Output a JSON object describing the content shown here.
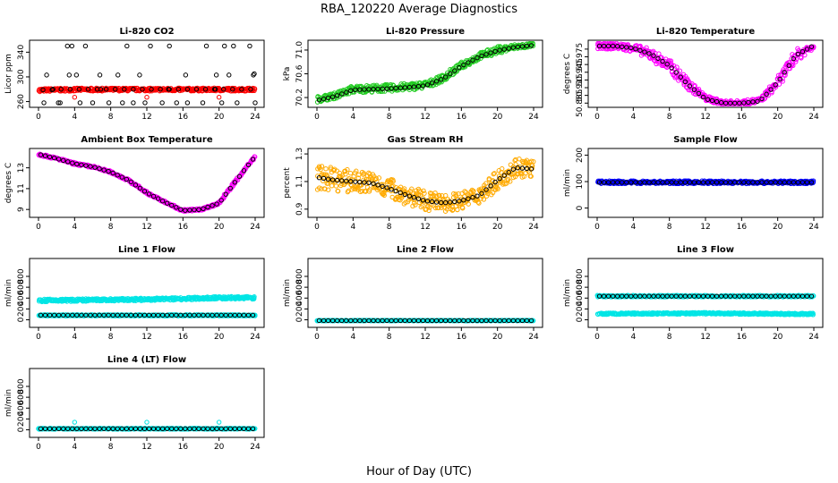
{
  "figure": {
    "title": "RBA_120220  Average Diagnostics",
    "xlabel": "Hour of Day (UTC)"
  },
  "chart_data": [
    {
      "id": "co2",
      "type": "scatter",
      "title": "Li-820 CO2",
      "ylabel": "Licor ppm",
      "xlim": [
        0,
        24
      ],
      "ylim": [
        255,
        355
      ],
      "xticks": [
        0,
        4,
        8,
        12,
        16,
        20,
        24
      ],
      "yticks": [
        260,
        300,
        340
      ],
      "ytick_labels": [
        "260",
        "300",
        "340"
      ],
      "series": [
        {
          "name": "band",
          "color": "#ff0000",
          "kind": "band",
          "x": [
            0,
            4,
            8,
            12,
            16,
            20,
            24
          ],
          "lo": [
            276,
            277,
            277,
            277,
            277,
            277,
            277
          ],
          "hi": [
            281,
            282,
            282,
            282,
            282,
            282,
            282
          ]
        },
        {
          "name": "mean",
          "color": "#000000",
          "kind": "points",
          "x": [
            0.5,
            1.5,
            2.5,
            3.5,
            4.5,
            5.5,
            6.5,
            7.5,
            8.5,
            9.5,
            10.5,
            11.5,
            12.5,
            13.5,
            14.5,
            15.5,
            16.5,
            17.5,
            18.5,
            19.5,
            20.5,
            21.5,
            22.5,
            23.5
          ],
          "y": [
            279,
            279,
            280,
            280,
            280,
            280,
            280,
            280,
            280,
            280,
            280,
            280,
            280,
            280,
            280,
            280,
            280,
            280,
            280,
            280,
            280,
            280,
            280,
            280
          ]
        },
        {
          "name": "outliers",
          "color": "#000000",
          "kind": "points",
          "x": [
            0.6,
            2.2,
            4.6,
            6.0,
            7.8,
            9.3,
            10.5,
            11.8,
            13.7,
            15.3,
            16.5,
            18.2,
            20.3,
            22.0,
            2.4,
            3.2,
            3.7,
            5.2,
            9.8,
            12.4,
            14.5,
            18.6,
            20.6,
            21.6,
            23.4,
            0.9,
            3.4,
            4.2,
            6.8,
            8.8,
            11.2,
            16.3,
            19.7,
            21.1,
            23.8,
            1.6,
            6.9,
            14.4,
            19.6,
            23.9,
            24.0
          ],
          "y": [
            258,
            258,
            258,
            258,
            258,
            258,
            258,
            258,
            258,
            258,
            258,
            258,
            258,
            258,
            258,
            350,
            350,
            350,
            350,
            350,
            350,
            350,
            350,
            350,
            350,
            303,
            303,
            303,
            303,
            303,
            303,
            303,
            303,
            303,
            303,
            280,
            280,
            280,
            280,
            305,
            258
          ]
        },
        {
          "name": "red",
          "color": "#ff0000",
          "kind": "points",
          "x": [
            4,
            12,
            20
          ],
          "y": [
            267,
            267,
            267
          ]
        }
      ]
    },
    {
      "id": "pressure",
      "type": "scatter",
      "title": "Li-820 Pressure",
      "ylabel": "kPa",
      "xlim": [
        0,
        24
      ],
      "ylim": [
        70.08,
        71.12
      ],
      "xticks": [
        0,
        4,
        8,
        12,
        16,
        20,
        24
      ],
      "yticks": [
        70.2,
        70.6,
        71.0
      ],
      "ytick_labels": [
        "70.2",
        "70.6",
        "71.0"
      ],
      "series": [
        {
          "name": "band",
          "color": "#22cc22",
          "kind": "band",
          "x": [
            0,
            2,
            4,
            6,
            8,
            10,
            12,
            14,
            16,
            18,
            20,
            22,
            24
          ],
          "lo": [
            70.12,
            70.18,
            70.28,
            70.29,
            70.3,
            70.32,
            70.35,
            70.47,
            70.68,
            70.84,
            70.94,
            71.01,
            71.05
          ],
          "hi": [
            70.22,
            70.28,
            70.4,
            70.41,
            70.42,
            70.44,
            70.47,
            70.59,
            70.8,
            70.96,
            71.06,
            71.1,
            71.12
          ]
        },
        {
          "name": "mean",
          "color": "#000000",
          "kind": "line",
          "x": [
            0,
            2,
            4,
            6,
            8,
            10,
            12,
            14,
            16,
            18,
            20,
            22,
            24
          ],
          "y": [
            70.15,
            70.22,
            70.33,
            70.34,
            70.35,
            70.37,
            70.4,
            70.52,
            70.73,
            70.89,
            70.99,
            71.05,
            71.08
          ]
        }
      ]
    },
    {
      "id": "licortemp",
      "type": "scatter",
      "title": "Li-820 Temperature",
      "ylabel": "degrees C",
      "xlim": [
        0,
        24
      ],
      "ylim": [
        50.882,
        51.002
      ],
      "xticks": [
        0,
        4,
        8,
        12,
        16,
        20,
        24
      ],
      "yticks": [
        50.885,
        50.9,
        50.915,
        50.93,
        50.945,
        50.96,
        50.975,
        50.99
      ],
      "ytick_labels": [
        "50.885",
        "",
        "50.915",
        "",
        "50.945",
        "",
        "50.975",
        ""
      ],
      "series": [
        {
          "name": "band",
          "color": "#ff00ff",
          "kind": "band",
          "x": [
            0,
            2,
            4,
            6,
            8,
            10,
            12,
            14,
            16,
            18,
            20,
            22,
            24
          ],
          "lo": [
            50.99,
            50.99,
            50.985,
            50.968,
            50.945,
            50.912,
            50.889,
            50.881,
            50.881,
            50.885,
            50.915,
            50.965,
            50.99
          ],
          "hi": [
            51.002,
            51.002,
            51.0,
            50.99,
            50.97,
            50.935,
            50.9,
            50.89,
            50.89,
            50.895,
            50.935,
            50.99,
            51.002
          ],
          "offsets": {
            "lo": -0.005,
            "hi": 0.004
          }
        },
        {
          "name": "mean",
          "color": "#000000",
          "kind": "line",
          "x": [
            0,
            2,
            4,
            6,
            8,
            10,
            12,
            14,
            16,
            18,
            20,
            22,
            24
          ],
          "y": [
            50.996,
            50.996,
            50.992,
            50.98,
            50.958,
            50.922,
            50.893,
            50.885,
            50.885,
            50.889,
            50.925,
            50.978,
            50.997
          ]
        }
      ]
    },
    {
      "id": "ambtemp",
      "type": "scatter",
      "title": "Ambient Box Temperature",
      "ylabel": "degrees C",
      "xlim": [
        0,
        24
      ],
      "ylim": [
        8.5,
        14.6
      ],
      "xticks": [
        0,
        4,
        8,
        12,
        16,
        20,
        24
      ],
      "yticks": [
        9,
        11,
        13
      ],
      "ytick_labels": [
        "9",
        "11",
        "13"
      ],
      "series": [
        {
          "name": "band",
          "color": "#ff00ff",
          "kind": "band",
          "x": [
            0,
            2,
            4,
            6,
            8,
            10,
            12,
            14,
            16,
            18,
            20,
            22,
            24
          ],
          "lo": [
            14.2,
            13.8,
            13.3,
            13.0,
            12.5,
            11.7,
            10.5,
            9.6,
            8.8,
            8.9,
            9.5,
            11.8,
            14.0
          ],
          "hi": [
            14.4,
            14.0,
            13.5,
            13.2,
            12.7,
            11.9,
            10.7,
            9.8,
            9.0,
            9.1,
            9.7,
            12.0,
            14.2
          ]
        },
        {
          "name": "mean",
          "color": "#000000",
          "kind": "line",
          "x": [
            0,
            2,
            4,
            6,
            8,
            10,
            12,
            14,
            16,
            18,
            20,
            22,
            24
          ],
          "y": [
            14.3,
            13.9,
            13.4,
            13.1,
            12.6,
            11.8,
            10.6,
            9.7,
            8.9,
            9.0,
            9.6,
            11.9,
            14.1
          ]
        }
      ]
    },
    {
      "id": "rh",
      "type": "scatter",
      "title": "Gas Stream RH",
      "ylabel": "percent",
      "xlim": [
        0,
        24
      ],
      "ylim": [
        0.86,
        1.32
      ],
      "xticks": [
        0,
        4,
        8,
        12,
        16,
        20,
        24
      ],
      "yticks": [
        0.9,
        1.1,
        1.3
      ],
      "ytick_labels": [
        "0.9",
        "1.1",
        "1.3"
      ],
      "series": [
        {
          "name": "band",
          "color": "#ffaa00",
          "kind": "band",
          "x": [
            0,
            2,
            4,
            6,
            8,
            10,
            12,
            14,
            16,
            18,
            20,
            22,
            24
          ],
          "lo": [
            1.04,
            1.03,
            1.02,
            1.01,
            0.98,
            0.93,
            0.89,
            0.88,
            0.9,
            0.94,
            1.04,
            1.13,
            1.13
          ],
          "hi": [
            1.22,
            1.2,
            1.18,
            1.17,
            1.13,
            1.07,
            1.03,
            1.01,
            1.02,
            1.07,
            1.18,
            1.28,
            1.26
          ]
        },
        {
          "name": "mean",
          "color": "#000000",
          "kind": "line",
          "x": [
            0,
            2,
            4,
            6,
            8,
            10,
            12,
            14,
            16,
            18,
            20,
            22,
            24
          ],
          "y": [
            1.13,
            1.11,
            1.1,
            1.09,
            1.05,
            1.0,
            0.96,
            0.945,
            0.96,
            1.0,
            1.11,
            1.2,
            1.19
          ]
        }
      ]
    },
    {
      "id": "sampleflow",
      "type": "scatter",
      "title": "Sample Flow",
      "ylabel": "ml/min",
      "xlim": [
        0,
        24
      ],
      "ylim": [
        -25,
        215
      ],
      "xticks": [
        0,
        4,
        8,
        12,
        16,
        20,
        24
      ],
      "yticks": [
        0,
        100,
        200
      ],
      "ytick_labels": [
        "0",
        "100",
        "200"
      ],
      "series": [
        {
          "name": "band",
          "color": "#0000ff",
          "kind": "band",
          "x": [
            0,
            24
          ],
          "lo": [
            92,
            92
          ],
          "hi": [
            103,
            103
          ]
        },
        {
          "name": "mean",
          "color": "#000000",
          "kind": "line",
          "x": [
            0,
            24
          ],
          "y": [
            97,
            97
          ]
        }
      ]
    },
    {
      "id": "line1",
      "type": "scatter",
      "title": "Line 1 Flow",
      "ylabel": "ml/min",
      "xlim": [
        0,
        24
      ],
      "ylim": [
        -90,
        1080
      ],
      "xticks": [
        0,
        4,
        8,
        12,
        16,
        20,
        24
      ],
      "yticks": [
        0,
        200,
        400,
        600,
        800
      ],
      "ytick_labels": [
        "0",
        "200",
        "400",
        "600",
        "800"
      ],
      "series": [
        {
          "name": "cyan",
          "color": "#00e5e5",
          "kind": "band",
          "x": [
            0,
            12,
            20,
            24
          ],
          "lo": [
            330,
            350,
            380,
            380
          ],
          "hi": [
            380,
            400,
            430,
            430
          ]
        },
        {
          "name": "cyan-low",
          "color": "#00e5e5",
          "kind": "band",
          "x": [
            0,
            24
          ],
          "lo": [
            70,
            70
          ],
          "hi": [
            95,
            95
          ]
        },
        {
          "name": "mean",
          "color": "#000000",
          "kind": "line",
          "x": [
            0,
            24
          ],
          "y": [
            85,
            85
          ]
        }
      ]
    },
    {
      "id": "line2",
      "type": "scatter",
      "title": "Line 2 Flow",
      "ylabel": "ml/min",
      "xlim": [
        0,
        24
      ],
      "ylim": [
        -90,
        1080
      ],
      "xticks": [
        0,
        4,
        8,
        12,
        16,
        20,
        24
      ],
      "yticks": [
        0,
        200,
        400,
        600,
        800
      ],
      "ytick_labels": [
        "0",
        "200",
        "400",
        "600",
        "800"
      ],
      "series": [
        {
          "name": "cyan",
          "color": "#00e5e5",
          "kind": "band",
          "x": [
            0,
            24
          ],
          "lo": [
            -20,
            -20
          ],
          "hi": [
            -8,
            -8
          ]
        },
        {
          "name": "mean",
          "color": "#000000",
          "kind": "line",
          "x": [
            0,
            24
          ],
          "y": [
            -15,
            -15
          ]
        }
      ]
    },
    {
      "id": "line3",
      "type": "scatter",
      "title": "Line 3 Flow",
      "ylabel": "ml/min",
      "xlim": [
        0,
        24
      ],
      "ylim": [
        -90,
        1080
      ],
      "xticks": [
        0,
        4,
        8,
        12,
        16,
        20,
        24
      ],
      "yticks": [
        0,
        200,
        400,
        600,
        800
      ],
      "ytick_labels": [
        "0",
        "200",
        "400",
        "600",
        "800"
      ],
      "series": [
        {
          "name": "cyan",
          "color": "#00e5e5",
          "kind": "band",
          "x": [
            0,
            24
          ],
          "lo": [
            420,
            420
          ],
          "hi": [
            450,
            450
          ]
        },
        {
          "name": "cyan-low",
          "color": "#00e5e5",
          "kind": "band",
          "x": [
            0,
            12,
            24
          ],
          "lo": [
            95,
            105,
            90
          ],
          "hi": [
            125,
            135,
            120
          ]
        },
        {
          "name": "mean",
          "color": "#000000",
          "kind": "line",
          "x": [
            0,
            24
          ],
          "y": [
            435,
            435
          ]
        }
      ]
    },
    {
      "id": "line4",
      "type": "scatter",
      "title": "Line 4 (LT) Flow",
      "ylabel": "ml/min",
      "xlim": [
        0,
        24
      ],
      "ylim": [
        -90,
        1080
      ],
      "xticks": [
        0,
        4,
        8,
        12,
        16,
        20,
        24
      ],
      "yticks": [
        0,
        200,
        400,
        600,
        800
      ],
      "ytick_labels": [
        "0",
        "200",
        "400",
        "600",
        "800"
      ],
      "series": [
        {
          "name": "cyan",
          "color": "#00e5e5",
          "kind": "band",
          "x": [
            0,
            24
          ],
          "lo": [
            10,
            10
          ],
          "hi": [
            30,
            30
          ]
        },
        {
          "name": "cyan-spikes",
          "color": "#00e5e5",
          "kind": "points",
          "x": [
            4,
            12,
            20,
            0
          ],
          "y": [
            140,
            140,
            140,
            20
          ]
        },
        {
          "name": "mean",
          "color": "#000000",
          "kind": "line",
          "x": [
            0,
            24
          ],
          "y": [
            20,
            20
          ]
        }
      ]
    }
  ]
}
